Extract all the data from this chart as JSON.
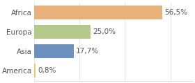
{
  "categories": [
    "America",
    "Asia",
    "Europa",
    "Africa"
  ],
  "values": [
    0.8,
    17.7,
    25.0,
    56.5
  ],
  "labels": [
    "0,8%",
    "17,7%",
    "25,0%",
    "56,5%"
  ],
  "bar_colors": [
    "#e8c97a",
    "#6b8fbf",
    "#b5c98a",
    "#e8b07a"
  ],
  "xlim": [
    0,
    70
  ],
  "background_color": "#ffffff",
  "label_fontsize": 7.5,
  "tick_fontsize": 7.5
}
